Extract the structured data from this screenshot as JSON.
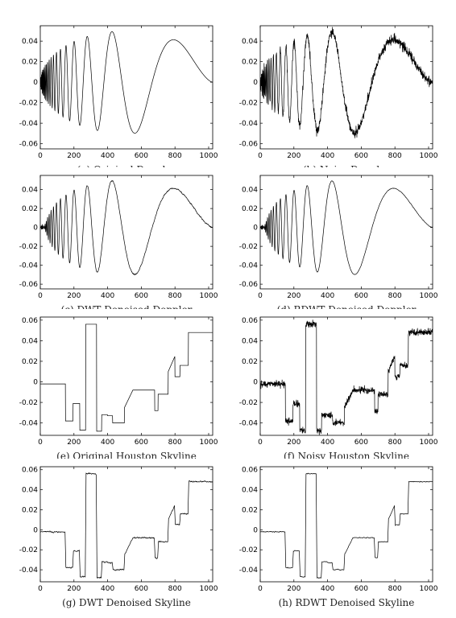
{
  "figure": {
    "background": "#ffffff",
    "line_color": "#000000"
  },
  "chart_data": [
    {
      "id": "a",
      "type": "line",
      "signal": "doppler",
      "noise": 0,
      "smooth": 0,
      "title": "(a) Original Doppler",
      "xlim": [
        0,
        1024
      ],
      "ylim": [
        -0.065,
        0.055
      ],
      "xticks": [
        0,
        200,
        400,
        600,
        800,
        1000
      ],
      "xtick_labels": [
        "0",
        "200",
        "400",
        "600",
        "800",
        "1000"
      ],
      "yticks": [
        0.04,
        0.02,
        0,
        -0.02,
        -0.04,
        -0.06
      ],
      "ytick_labels": [
        "0.04",
        "0.02",
        "0",
        "-0.02",
        "-0.04",
        "-0.06"
      ]
    },
    {
      "id": "b",
      "type": "line",
      "signal": "doppler",
      "noise": 0.0022,
      "smooth": 0,
      "title": "(b) Noisy Doppler",
      "xlim": [
        0,
        1024
      ],
      "ylim": [
        -0.065,
        0.055
      ],
      "xticks": [
        0,
        200,
        400,
        600,
        800,
        1000
      ],
      "xtick_labels": [
        "0",
        "200",
        "400",
        "600",
        "800",
        "1000"
      ],
      "yticks": [
        0.04,
        0.02,
        0,
        -0.02,
        -0.04,
        -0.06
      ],
      "ytick_labels": [
        "0.04",
        "0.02",
        "0",
        "-0.02",
        "-0.04",
        "-0.06"
      ]
    },
    {
      "id": "c",
      "type": "line",
      "signal": "doppler",
      "noise": 0.0008,
      "smooth": 1,
      "title": "(c) DWT Denoised Doppler",
      "xlim": [
        0,
        1024
      ],
      "ylim": [
        -0.065,
        0.055
      ],
      "xticks": [
        0,
        200,
        400,
        600,
        800,
        1000
      ],
      "xtick_labels": [
        "0",
        "200",
        "400",
        "600",
        "800",
        "1000"
      ],
      "yticks": [
        0.04,
        0.02,
        0,
        -0.02,
        -0.04,
        -0.06
      ],
      "ytick_labels": [
        "0.04",
        "0.02",
        "0",
        "-0.02",
        "-0.04",
        "-0.06"
      ]
    },
    {
      "id": "d",
      "type": "line",
      "signal": "doppler",
      "noise": 0.0003,
      "smooth": 1,
      "title": "(d) RDWT Denoised Doppler",
      "xlim": [
        0,
        1024
      ],
      "ylim": [
        -0.065,
        0.055
      ],
      "xticks": [
        0,
        200,
        400,
        600,
        800,
        1000
      ],
      "xtick_labels": [
        "0",
        "200",
        "400",
        "600",
        "800",
        "1000"
      ],
      "yticks": [
        0.04,
        0.02,
        0,
        -0.02,
        -0.04,
        -0.06
      ],
      "ytick_labels": [
        "0.04",
        "0.02",
        "0",
        "-0.02",
        "-0.04",
        "-0.06"
      ]
    },
    {
      "id": "e",
      "type": "line",
      "signal": "skyline",
      "noise": 0,
      "smooth": 0,
      "title": "(e) Original Houston Skyline",
      "xlim": [
        0,
        1024
      ],
      "ylim": [
        -0.052,
        0.063
      ],
      "xticks": [
        0,
        200,
        400,
        600,
        800,
        1000
      ],
      "xtick_labels": [
        "0",
        "200",
        "400",
        "600",
        "800",
        "1000"
      ],
      "yticks": [
        0.06,
        0.04,
        0.02,
        0,
        -0.02,
        -0.04
      ],
      "ytick_labels": [
        "0.06",
        "0.04",
        "0.02",
        "0",
        "-0.02",
        "-0.04"
      ],
      "segments": [
        [
          0,
          150,
          -0.002,
          -0.002
        ],
        [
          150,
          180,
          -0.038,
          -0.038
        ],
        [
          180,
          195,
          -0.038,
          -0.038
        ],
        [
          195,
          235,
          -0.021,
          -0.021
        ],
        [
          235,
          270,
          -0.047,
          -0.047
        ],
        [
          270,
          335,
          0.056,
          0.056
        ],
        [
          335,
          365,
          -0.048,
          -0.048
        ],
        [
          365,
          400,
          -0.032,
          -0.032
        ],
        [
          400,
          430,
          -0.033,
          -0.033
        ],
        [
          430,
          460,
          -0.04,
          -0.04
        ],
        [
          460,
          500,
          -0.04,
          -0.04
        ],
        [
          500,
          550,
          -0.025,
          -0.008
        ],
        [
          550,
          680,
          -0.008,
          -0.008
        ],
        [
          680,
          700,
          -0.028,
          -0.028
        ],
        [
          700,
          760,
          -0.012,
          -0.012
        ],
        [
          760,
          800,
          0.01,
          0.025
        ],
        [
          800,
          830,
          0.005,
          0.005
        ],
        [
          830,
          880,
          0.016,
          0.016
        ],
        [
          880,
          1024,
          0.048,
          0.048
        ]
      ]
    },
    {
      "id": "f",
      "type": "line",
      "signal": "skyline",
      "noise": 0.0016,
      "smooth": 0,
      "title": "(f) Noisy Houston Skyline",
      "xlim": [
        0,
        1024
      ],
      "ylim": [
        -0.052,
        0.063
      ],
      "xticks": [
        0,
        200,
        400,
        600,
        800,
        1000
      ],
      "xtick_labels": [
        "0",
        "200",
        "400",
        "600",
        "800",
        "1000"
      ],
      "yticks": [
        0.06,
        0.04,
        0.02,
        0,
        -0.02,
        -0.04
      ],
      "ytick_labels": [
        "0.06",
        "0.04",
        "0.02",
        "0",
        "-0.02",
        "-0.04"
      ]
    },
    {
      "id": "g",
      "type": "line",
      "signal": "skyline",
      "noise": 0.0007,
      "smooth": 1,
      "title": "(g) DWT Denoised Skyline",
      "xlim": [
        0,
        1024
      ],
      "ylim": [
        -0.052,
        0.063
      ],
      "xticks": [
        0,
        200,
        400,
        600,
        800,
        1000
      ],
      "xtick_labels": [
        "0",
        "200",
        "400",
        "600",
        "800",
        "1000"
      ],
      "yticks": [
        0.06,
        0.04,
        0.02,
        0,
        -0.02,
        -0.04
      ],
      "ytick_labels": [
        "0.06",
        "0.04",
        "0.02",
        "0",
        "-0.02",
        "-0.04"
      ]
    },
    {
      "id": "h",
      "type": "line",
      "signal": "skyline",
      "noise": 0.0004,
      "smooth": 1,
      "title": "(h) RDWT Denoised Skyline",
      "xlim": [
        0,
        1024
      ],
      "ylim": [
        -0.052,
        0.063
      ],
      "xticks": [
        0,
        200,
        400,
        600,
        800,
        1000
      ],
      "xtick_labels": [
        "0",
        "200",
        "400",
        "600",
        "800",
        "1000"
      ],
      "yticks": [
        0.06,
        0.04,
        0.02,
        0,
        -0.02,
        -0.04
      ],
      "ytick_labels": [
        "0.06",
        "0.04",
        "0.02",
        "0",
        "-0.02",
        "-0.04"
      ]
    }
  ]
}
